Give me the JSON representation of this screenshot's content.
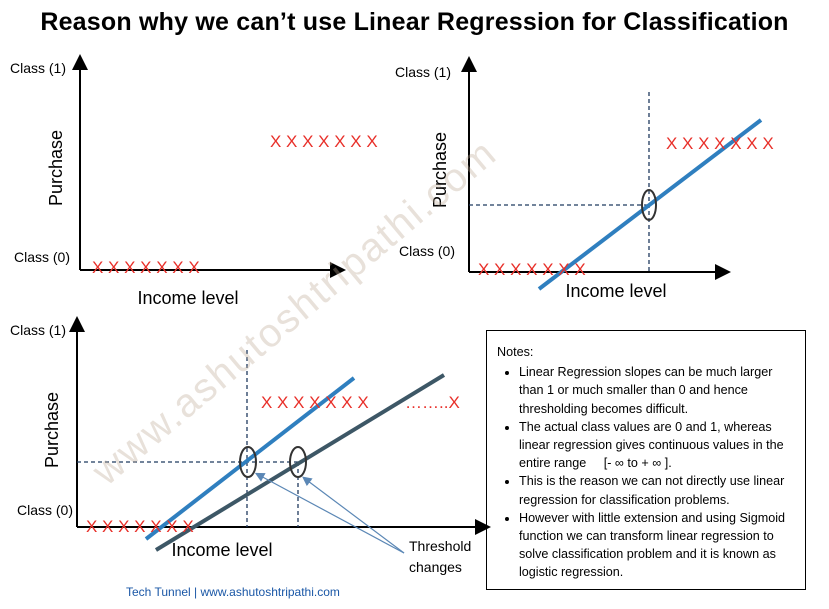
{
  "title": "Reason why we can’t use Linear Regression for Classification",
  "watermark": "www.ashutoshtripathi.com",
  "panels": {
    "top_left": {
      "class1": "Class (1)",
      "class0": "Class (0)",
      "ylabel": "Purchase",
      "xlabel": "Income level",
      "marks_low": "X X X X X X X",
      "marks_high": "X X X X X X X"
    },
    "top_right": {
      "class1": "Class (1)",
      "class0": "Class (0)",
      "ylabel": "Purchase",
      "xlabel": "Income level",
      "marks_low": "X X X X X X X",
      "marks_high": "X X X X X X X"
    },
    "bottom_left": {
      "class1": "Class (1)",
      "class0": "Class (0)",
      "ylabel": "Purchase",
      "xlabel": "Income level",
      "marks_low": "X X X X X X X",
      "marks_high": "X X X X X X X",
      "dots": "……..X",
      "annotation_line1": "Threshold",
      "annotation_line2": "changes"
    }
  },
  "notes": {
    "heading": "Notes:",
    "items": [
      "Linear Regression slopes can be much larger than 1 or much smaller than 0 and hence thresholding becomes difficult.",
      "The actual class values are 0 and 1, whereas linear regression gives continuous values in the entire range     [- ∞ to + ∞ ].",
      "This is the reason we can not directly use linear regression for classification problems.",
      "However with little extension and using Sigmoid function we can transform linear regression to solve classification problem and it is known as logistic regression."
    ]
  },
  "footer": "Tech Tunnel | www.ashutoshtripathi.com",
  "colors": {
    "marks": "#e8302a",
    "line1": "#2f7fbf",
    "line2": "#3d5766",
    "guide": "#1f3a5f",
    "arrow": "#5b87b5"
  }
}
